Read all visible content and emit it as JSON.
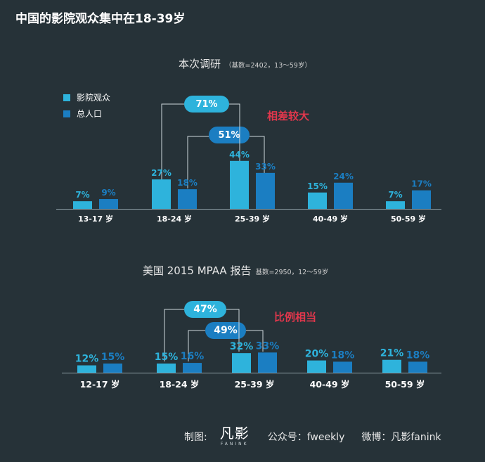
{
  "header": {
    "title": "中国的影院观众集中在18-39岁"
  },
  "colors": {
    "background": "#263238",
    "theater": "#2eb3dc",
    "population": "#1b7ec2",
    "highlight": "#e0374c",
    "axis": "#8fa0a8"
  },
  "legend": {
    "theater_label": "影院观众",
    "population_label": "总人口"
  },
  "chart1": {
    "title": "本次调研",
    "subtitle": "（基数=2402，13～59岁）",
    "note": "相差较大",
    "pill_a": "71%",
    "pill_b": "51%"
  },
  "chart2": {
    "title": "美国 2015 MPAA 报告",
    "subtitle": "基数=2950，12～59岁",
    "note": "比例相当",
    "pill_a": "47%",
    "pill_b": "49%"
  },
  "footer": {
    "made_by": "制图:",
    "logo_text": "凡影",
    "logo_sub": "FANINK",
    "wechat": "公众号：fweekly",
    "weibo": "微博：凡影fanink"
  },
  "chart_data": [
    {
      "type": "bar",
      "title": "本次调研",
      "categories": [
        "13-17 岁",
        "18-24 岁",
        "25-39 岁",
        "40-49 岁",
        "50-59 岁"
      ],
      "series": [
        {
          "name": "影院观众",
          "values": [
            7,
            27,
            44,
            15,
            7
          ],
          "color": "#2eb3dc"
        },
        {
          "name": "总人口",
          "values": [
            9,
            18,
            33,
            24,
            17
          ],
          "color": "#1b7ec2"
        }
      ],
      "value_labels": [
        [
          "7%",
          "27%",
          "44%",
          "15%",
          "7%"
        ],
        [
          "9%",
          "18%",
          "33%",
          "24%",
          "17%"
        ]
      ],
      "annotations": [
        "71%",
        "51%",
        "相差较大"
      ],
      "legend": "top-left",
      "grid": false
    },
    {
      "type": "bar",
      "title": "美国 2015 MPAA 报告",
      "categories": [
        "12-17 岁",
        "18-24 岁",
        "25-39 岁",
        "40-49 岁",
        "50-59 岁"
      ],
      "series": [
        {
          "name": "影院观众",
          "values": [
            12,
            15,
            32,
            20,
            21
          ],
          "color": "#2eb3dc"
        },
        {
          "name": "总人口",
          "values": [
            15,
            16,
            33,
            18,
            18
          ],
          "color": "#1b7ec2"
        }
      ],
      "value_labels": [
        [
          "12%",
          "15%",
          "32%",
          "20%",
          "21%"
        ],
        [
          "15%",
          "16%",
          "33%",
          "18%",
          "18%"
        ]
      ],
      "annotations": [
        "47%",
        "49%",
        "比例相当"
      ],
      "grid": false
    }
  ]
}
